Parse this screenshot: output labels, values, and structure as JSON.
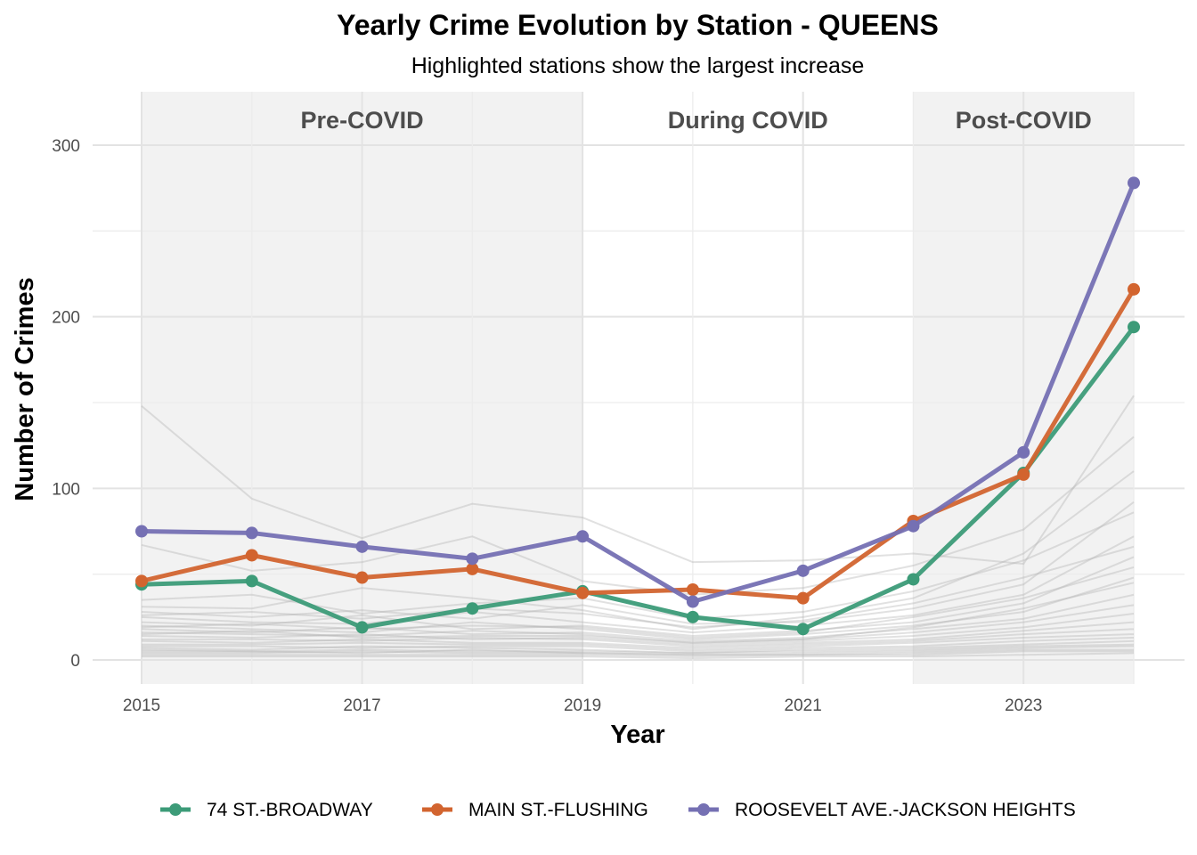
{
  "chart_data": {
    "type": "line",
    "title": "Yearly Crime Evolution by Station - QUEENS",
    "subtitle": "Highlighted stations show the largest increase",
    "xlabel": "Year",
    "ylabel": "Number of Crimes",
    "xlim": [
      2015,
      2024
    ],
    "ylim": [
      0,
      300
    ],
    "x_ticks": [
      2015,
      2017,
      2019,
      2021,
      2023
    ],
    "y_ticks": [
      0,
      100,
      200,
      300
    ],
    "x": [
      2015,
      2016,
      2017,
      2018,
      2019,
      2020,
      2021,
      2022,
      2023,
      2024
    ],
    "periods": [
      {
        "label": "Pre-COVID",
        "start": 2015,
        "end": 2019,
        "shaded": true
      },
      {
        "label": "During COVID",
        "start": 2019,
        "end": 2022,
        "shaded": false
      },
      {
        "label": "Post-COVID",
        "start": 2022,
        "end": 2024,
        "shaded": true
      }
    ],
    "series": [
      {
        "name": "74 ST.-BROADWAY",
        "color": "#3c9b78",
        "values": [
          44,
          46,
          19,
          30,
          40,
          25,
          18,
          47,
          109,
          194
        ]
      },
      {
        "name": "MAIN ST.-FLUSHING",
        "color": "#d2642f",
        "values": [
          46,
          61,
          48,
          53,
          39,
          41,
          36,
          81,
          108,
          216
        ]
      },
      {
        "name": "ROOSEVELT AVE.-JACKSON HEIGHTS",
        "color": "#7570b3",
        "values": [
          75,
          74,
          66,
          59,
          72,
          34,
          52,
          78,
          121,
          278
        ]
      }
    ],
    "background_series": [
      [
        148,
        94,
        71,
        91,
        83,
        57,
        58,
        62,
        56,
        154
      ],
      [
        67,
        52,
        57,
        72,
        46,
        38,
        42,
        55,
        76,
        130
      ],
      [
        31,
        30,
        42,
        36,
        29,
        18,
        25,
        36,
        62,
        110
      ],
      [
        28,
        25,
        29,
        24,
        32,
        21,
        22,
        30,
        44,
        92
      ],
      [
        25,
        22,
        21,
        28,
        22,
        16,
        20,
        26,
        38,
        72
      ],
      [
        22,
        20,
        26,
        18,
        20,
        14,
        17,
        22,
        33,
        60
      ],
      [
        20,
        18,
        16,
        22,
        18,
        12,
        15,
        20,
        28,
        48
      ],
      [
        18,
        16,
        19,
        15,
        16,
        11,
        13,
        18,
        24,
        38
      ],
      [
        16,
        15,
        14,
        17,
        15,
        10,
        12,
        16,
        22,
        32
      ],
      [
        14,
        13,
        15,
        12,
        13,
        9,
        11,
        14,
        19,
        27
      ],
      [
        12,
        12,
        11,
        13,
        12,
        8,
        10,
        12,
        17,
        22
      ],
      [
        11,
        10,
        12,
        10,
        10,
        7,
        9,
        11,
        15,
        18
      ],
      [
        9,
        9,
        10,
        9,
        9,
        6,
        8,
        10,
        13,
        15
      ],
      [
        8,
        8,
        7,
        8,
        8,
        5,
        7,
        8,
        11,
        13
      ],
      [
        7,
        6,
        8,
        7,
        6,
        4,
        6,
        7,
        9,
        11
      ],
      [
        6,
        5,
        6,
        5,
        5,
        4,
        5,
        6,
        8,
        9
      ],
      [
        5,
        5,
        4,
        6,
        4,
        3,
        4,
        5,
        7,
        8
      ],
      [
        4,
        4,
        5,
        4,
        4,
        3,
        3,
        4,
        6,
        6
      ],
      [
        3,
        3,
        3,
        3,
        3,
        2,
        3,
        3,
        5,
        5
      ],
      [
        2,
        2,
        2,
        2,
        2,
        1,
        2,
        2,
        3,
        4
      ],
      [
        35,
        38,
        27,
        33,
        36,
        24,
        28,
        40,
        58,
        86
      ],
      [
        26,
        28,
        24,
        30,
        27,
        19,
        23,
        33,
        48,
        66
      ],
      [
        19,
        21,
        18,
        20,
        19,
        13,
        16,
        25,
        36,
        54
      ],
      [
        15,
        17,
        13,
        14,
        14,
        10,
        12,
        19,
        30,
        45
      ]
    ]
  }
}
